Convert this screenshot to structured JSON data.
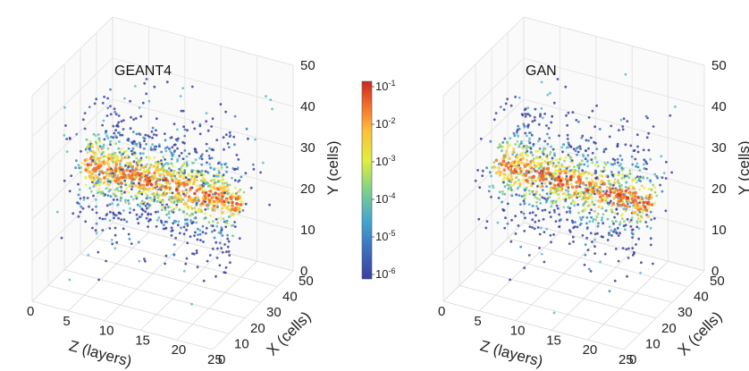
{
  "chart_data": [
    {
      "type": "scatter",
      "title": "GEANT4",
      "xlabel": "Z (layers)",
      "ylabel": "X (cells)",
      "zlabel": "Y (cells)",
      "z_axis_ticks": [
        "0",
        "5",
        "10",
        "15",
        "20",
        "25"
      ],
      "x_axis_ticks": [
        "0",
        "10",
        "20",
        "30",
        "40",
        "50"
      ],
      "y_axis_ticks": [
        "0",
        "10",
        "20",
        "30",
        "40",
        "50"
      ],
      "layer_range": [
        0,
        25
      ],
      "cell_range_x": [
        0,
        50
      ],
      "cell_range_y": [
        0,
        50
      ],
      "log_color_scale": true
    },
    {
      "type": "scatter",
      "title": "GAN",
      "xlabel": "Z (layers)",
      "ylabel": "X (cells)",
      "zlabel": "Y (cells)",
      "z_axis_ticks": [
        "0",
        "5",
        "10",
        "15",
        "20",
        "25"
      ],
      "x_axis_ticks": [
        "0",
        "10",
        "20",
        "30",
        "40",
        "50"
      ],
      "y_axis_ticks": [
        "0",
        "10",
        "20",
        "30",
        "40",
        "50"
      ],
      "layer_range": [
        0,
        25
      ],
      "cell_range_x": [
        0,
        50
      ],
      "cell_range_y": [
        0,
        50
      ],
      "log_color_scale": true
    }
  ],
  "colorbar": {
    "labels": [
      "10-1",
      "10-2",
      "10-3",
      "10-4",
      "10-5",
      "10-6"
    ],
    "colors": [
      "#d7301f",
      "#f46d2a",
      "#fdbf3a",
      "#e6f03c",
      "#8fd16a",
      "#4fb8c8",
      "#3a82c0",
      "#3b3f9e"
    ]
  }
}
